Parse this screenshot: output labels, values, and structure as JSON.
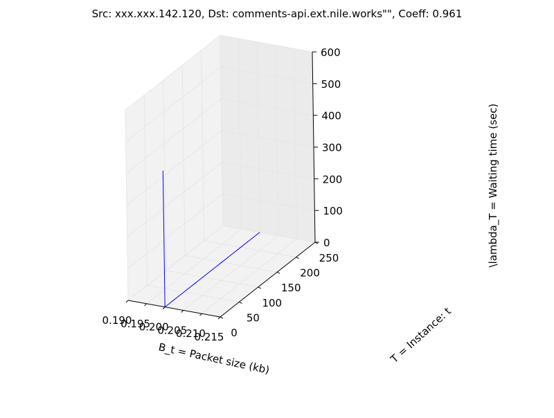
{
  "chart_data": {
    "type": "line",
    "projection": "3d",
    "title": "Src: xxx.xxx.142.120, Dst: comments-api.ext.nile.works\"\", Coeff: 0.961",
    "xlabel": "B_t = Packet size (kb)",
    "ylabel": "T = Instance: t",
    "zlabel": "\\lambda_T = Waiting time (sec)",
    "xlim": [
      0.19,
      0.215
    ],
    "ylim": [
      0,
      250
    ],
    "zlim": [
      0,
      600
    ],
    "xticks": [
      "0.190",
      "0.195",
      "0.200",
      "0.205",
      "0.210",
      "0.215"
    ],
    "yticks": [
      "0",
      "50",
      "100",
      "150",
      "200",
      "250"
    ],
    "zticks": [
      "0",
      "100",
      "200",
      "300",
      "400",
      "500",
      "600"
    ],
    "grid": true,
    "series_color": "#0000ff",
    "series": [
      {
        "points": [
          {
            "x": 0.2,
            "y": 0,
            "z": 430
          },
          {
            "x": 0.2,
            "y": 0,
            "z": 0
          },
          {
            "x": 0.2,
            "y": 25,
            "z": 0
          },
          {
            "x": 0.2,
            "y": 50,
            "z": 0
          },
          {
            "x": 0.2,
            "y": 75,
            "z": 0
          },
          {
            "x": 0.2,
            "y": 100,
            "z": 0
          },
          {
            "x": 0.2,
            "y": 125,
            "z": 0
          },
          {
            "x": 0.2,
            "y": 150,
            "z": 0
          },
          {
            "x": 0.2,
            "y": 175,
            "z": 0
          },
          {
            "x": 0.2,
            "y": 200,
            "z": 0
          },
          {
            "x": 0.2,
            "y": 225,
            "z": 0
          },
          {
            "x": 0.2,
            "y": 250,
            "z": 0
          }
        ]
      }
    ]
  }
}
